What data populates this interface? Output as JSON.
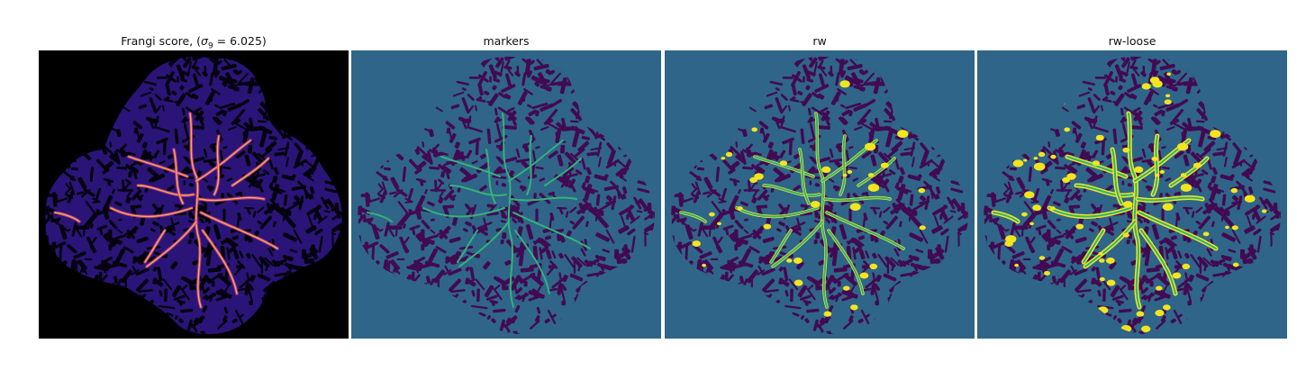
{
  "panels": [
    {
      "id": "frangi",
      "title_prefix": "Frangi score, (",
      "title_symbol": "σ",
      "title_sub": "9",
      "title_suffix": " = 6.025)",
      "colormap": "plasma-like",
      "bg_color": "#000000",
      "body_color": "#2a1478",
      "pattern_color": "#05030f",
      "vessel_color": "#f6b03a",
      "vessel_edge_color": "#d03b9e"
    },
    {
      "id": "markers",
      "title": "markers",
      "bg_color": "#2f6588",
      "body_color": "#2f6588",
      "pattern_color": "#420a52",
      "vessel_color": "#33b27a"
    },
    {
      "id": "rw",
      "title": "rw",
      "bg_color": "#2f6588",
      "body_color": "#2f6588",
      "pattern_color": "#420a52",
      "vessel_color": "#2fb37a",
      "highlight_color": "#f2e51d"
    },
    {
      "id": "rw-loose",
      "title": "rw-loose",
      "bg_color": "#2f6588",
      "body_color": "#2f6588",
      "pattern_color": "#420a52",
      "vessel_color": "#2fb37a",
      "highlight_color": "#f2e51d"
    }
  ]
}
